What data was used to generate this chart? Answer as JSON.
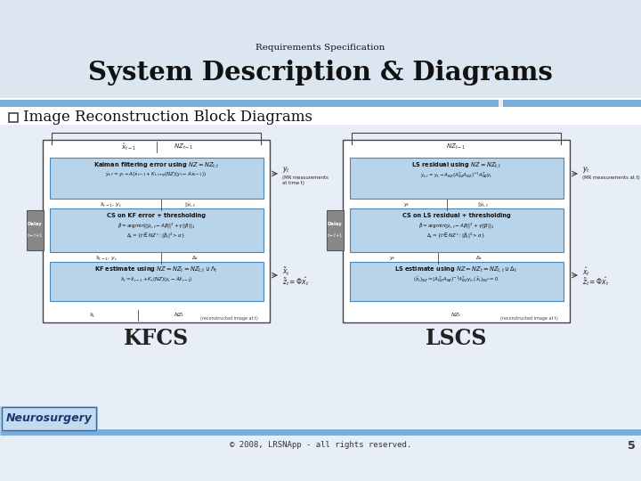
{
  "bg_color": "#dce6f1",
  "slide_bg": "#e8eef8",
  "title_small": "Requirements Specification",
  "title_large": "System Description & Diagrams",
  "bullet_text": "Image Reconstruction Block Diagrams",
  "label_kfcs": "KFCS",
  "label_lscs": "LSCS",
  "footer_text": "© 2008, LRSNApp - all rights reserved.",
  "page_num": "5",
  "neurosurgery_text": "Neurosurgery",
  "header_bar_color": "#7aadda",
  "footer_bar_color": "#7aadda",
  "box_blue": "#b8d4ea",
  "box_blue_border": "#4a86b8",
  "diagram_border": "#555555"
}
